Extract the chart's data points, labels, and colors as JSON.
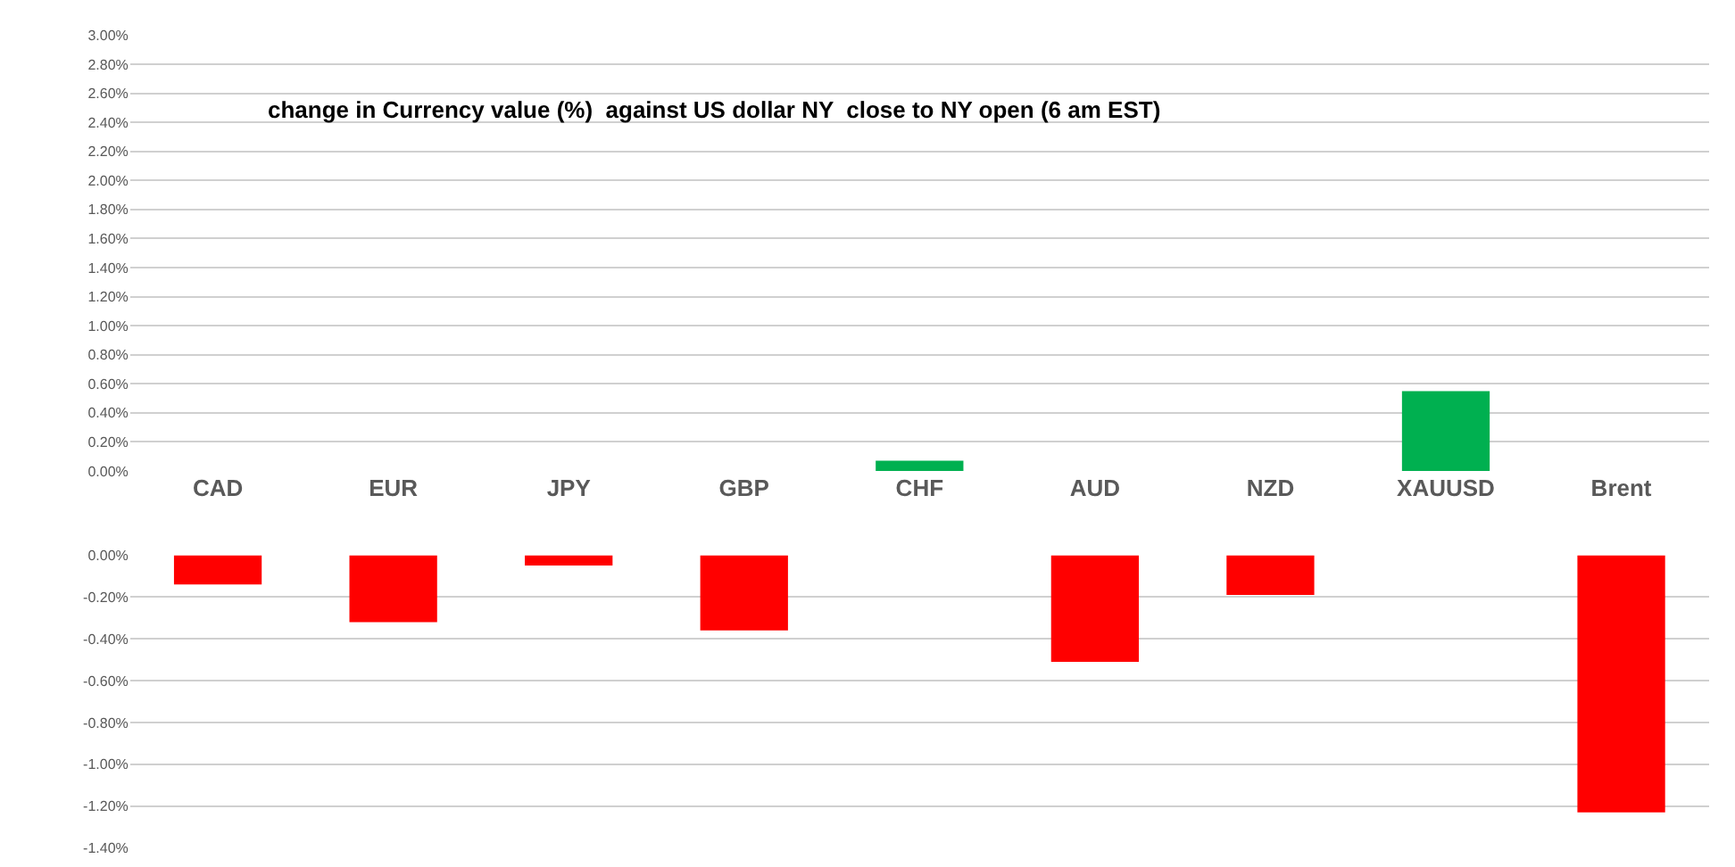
{
  "chart_data": [
    {
      "type": "bar",
      "title": "change in Currency value (%)  against US dollar NY  close to NY open (6 am EST)",
      "categories": [
        "CAD",
        "EUR",
        "JPY",
        "GBP",
        "CHF",
        "AUD",
        "NZD",
        "XAUUSD",
        "Brent"
      ],
      "values": [
        null,
        null,
        null,
        null,
        0.07,
        null,
        null,
        0.55,
        null
      ],
      "color": "#00b050",
      "ylim": [
        0,
        3.0
      ],
      "yticks": [
        {
          "value": 0,
          "label": "0.00%"
        },
        {
          "value": 0.2,
          "label": "0.20%"
        },
        {
          "value": 0.4,
          "label": "0.40%"
        },
        {
          "value": 0.6,
          "label": "0.60%"
        },
        {
          "value": 0.8,
          "label": "0.80%"
        },
        {
          "value": 1.0,
          "label": "1.00%"
        },
        {
          "value": 1.2,
          "label": "1.20%"
        },
        {
          "value": 1.4,
          "label": "1.40%"
        },
        {
          "value": 1.6,
          "label": "1.60%"
        },
        {
          "value": 1.8,
          "label": "1.80%"
        },
        {
          "value": 2.0,
          "label": "2.00%"
        },
        {
          "value": 2.2,
          "label": "2.20%"
        },
        {
          "value": 2.4,
          "label": "2.40%"
        },
        {
          "value": 2.6,
          "label": "2.60%"
        },
        {
          "value": 2.8,
          "label": "2.80%"
        },
        {
          "value": 3.0,
          "label": "3.00%"
        }
      ],
      "grid": "y"
    },
    {
      "type": "bar",
      "categories": [
        null,
        null,
        null,
        null,
        null,
        null,
        null,
        null,
        null
      ],
      "values": [
        -0.14,
        -0.32,
        -0.05,
        -0.36,
        null,
        -0.51,
        -0.19,
        null,
        -1.23
      ],
      "color": "#ff0000",
      "ylim": [
        -1.4,
        0
      ],
      "yticks": [
        {
          "value": 0,
          "label": "0.00%"
        },
        {
          "value": -0.2,
          "label": "-0.20%"
        },
        {
          "value": -0.4,
          "label": "-0.40%"
        },
        {
          "value": -0.6,
          "label": "-0.60%"
        },
        {
          "value": -0.8,
          "label": "-0.80%"
        },
        {
          "value": -1.0,
          "label": "-1.00%"
        },
        {
          "value": -1.2,
          "label": "-1.20%"
        },
        {
          "value": -1.4,
          "label": "-1.40%"
        }
      ],
      "grid": "y",
      "tick_labels": "y"
    }
  ]
}
